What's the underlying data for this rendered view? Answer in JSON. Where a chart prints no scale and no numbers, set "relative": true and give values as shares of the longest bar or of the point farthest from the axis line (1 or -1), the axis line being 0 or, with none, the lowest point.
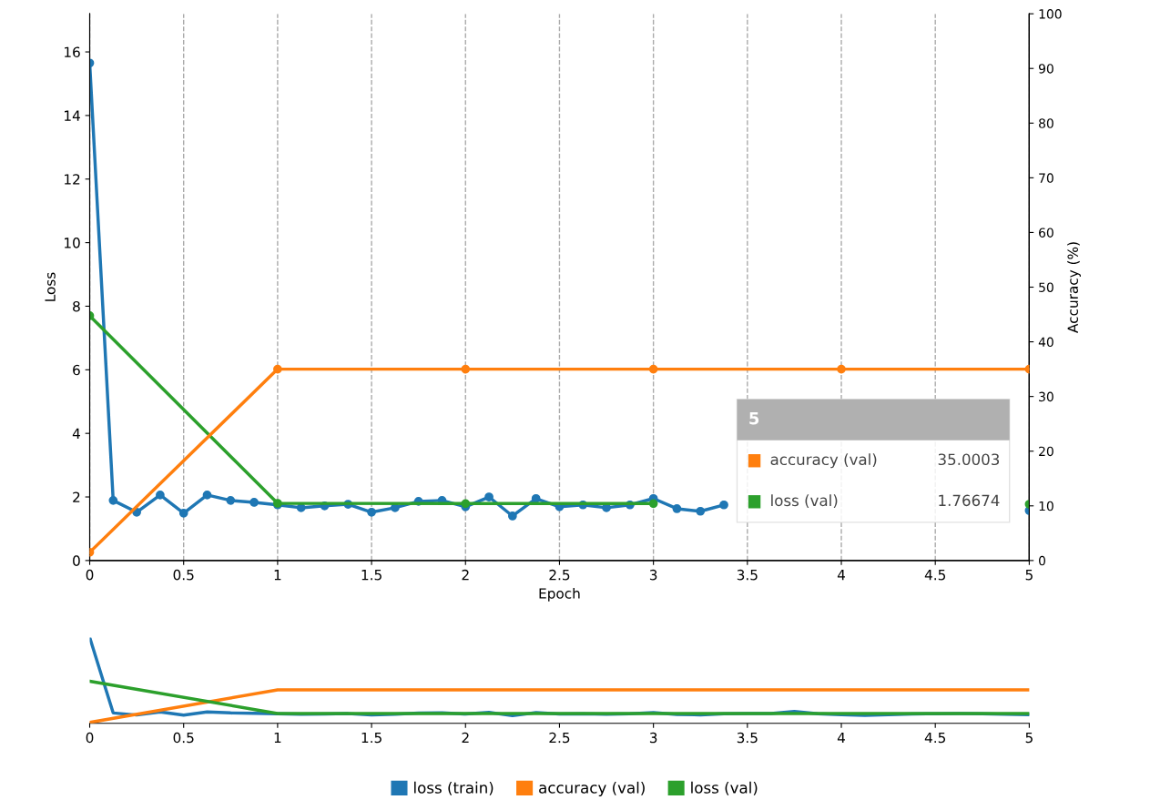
{
  "chart_data": [
    {
      "type": "line",
      "xlabel": "Epoch",
      "ylabel": "Loss",
      "y2label": "Accuracy (%)",
      "xlim": [
        0,
        5
      ],
      "xticks": [
        0,
        0.5,
        1,
        1.5,
        2,
        2.5,
        3,
        3.5,
        4,
        4.5,
        5
      ],
      "ylim": [
        0,
        17.2
      ],
      "yticks": [
        0,
        2,
        4,
        6,
        8,
        10,
        12,
        14,
        16
      ],
      "y2lim": [
        0,
        100
      ],
      "y2ticks": [
        0,
        10,
        20,
        30,
        40,
        50,
        60,
        70,
        80,
        90,
        100
      ],
      "grid": "x",
      "legend": "bottom",
      "marker": "circle",
      "ref_lines": [
        {
          "axis": "x",
          "value": 5,
          "color": "#999999"
        }
      ],
      "annotations": [
        "5",
        "accuracy (val)",
        "35.0003",
        "loss (val)",
        "1.76674"
      ],
      "series": [
        {
          "name": "loss (train)",
          "color": "#1f77b4",
          "x": [
            0,
            0.125,
            0.25,
            0.375,
            0.5,
            0.625,
            0.75,
            0.875,
            1,
            1.125,
            1.25,
            1.375,
            1.5,
            1.625,
            1.75,
            1.875,
            2,
            2.125,
            2.25,
            2.375,
            2.5,
            2.625,
            2.75,
            2.875,
            3,
            3.125,
            3.25,
            3.375,
            3.5,
            3.625,
            3.75,
            3.875,
            4,
            4.125,
            4.25,
            4.375,
            4.5,
            4.625,
            4.75,
            4.875,
            5
          ],
          "values": [
            15.65,
            1.89,
            1.52,
            2.06,
            1.49,
            2.06,
            1.89,
            1.83,
            1.75,
            1.66,
            1.72,
            1.77,
            1.52,
            1.66,
            1.86,
            1.89,
            1.69,
            2.0,
            1.4,
            1.95,
            1.69,
            1.75,
            1.66,
            1.75,
            1.95,
            1.63,
            1.55,
            1.75,
            null,
            null,
            null,
            null,
            null,
            null,
            null,
            null,
            null,
            null,
            null,
            null,
            1.57
          ]
        },
        {
          "name": "accuracy (val)",
          "color": "#ff7f0e",
          "axis": "y2",
          "x": [
            0,
            1,
            2,
            3,
            4,
            5
          ],
          "values": [
            1.5,
            35,
            35,
            35,
            35,
            35
          ]
        },
        {
          "name": "loss (val)",
          "color": "#2ca02c",
          "x": [
            0,
            1,
            2,
            3,
            4,
            5
          ],
          "values": [
            7.7,
            1.8,
            1.79,
            1.79,
            null,
            1.77
          ]
        }
      ]
    },
    {
      "type": "line",
      "relative": true,
      "tick_labels": "x",
      "xlim": [
        0,
        5
      ],
      "xticks": [
        0,
        0.5,
        1,
        1.5,
        2,
        2.5,
        3,
        3.5,
        4,
        4.5,
        5
      ],
      "series": [
        {
          "color": "#1f77b4",
          "x": [
            0,
            0.125,
            0.25,
            0.375,
            0.5,
            0.625,
            0.75,
            0.875,
            1,
            1.125,
            1.25,
            1.375,
            1.5,
            1.625,
            1.75,
            1.875,
            2,
            2.125,
            2.25,
            2.375,
            2.5,
            2.625,
            2.75,
            2.875,
            3,
            3.125,
            3.25,
            3.375,
            3.5,
            3.625,
            3.75,
            3.875,
            4,
            4.125,
            4.25,
            4.375,
            4.5,
            4.625,
            4.75,
            4.875,
            5
          ],
          "values": [
            1,
            0.121,
            0.097,
            0.132,
            0.095,
            0.132,
            0.121,
            0.117,
            0.112,
            0.106,
            0.11,
            0.113,
            0.097,
            0.106,
            0.119,
            0.121,
            0.108,
            0.128,
            0.089,
            0.125,
            0.108,
            0.112,
            0.106,
            0.112,
            0.125,
            0.104,
            0.099,
            0.112,
            0.115,
            0.115,
            0.137,
            0.112,
            0.102,
            0.093,
            0.102,
            0.109,
            0.112,
            0.115,
            0.112,
            0.105,
            0.1
          ]
        },
        {
          "color": "#ff7f0e",
          "x": [
            0,
            1,
            2,
            3,
            4,
            5
          ],
          "values": [
            0.01,
            0.39,
            0.39,
            0.39,
            0.39,
            0.39
          ]
        },
        {
          "color": "#2ca02c",
          "x": [
            0,
            1,
            2,
            3,
            4,
            5
          ],
          "values": [
            0.49,
            0.115,
            0.114,
            0.114,
            0.113,
            0.113
          ]
        }
      ]
    }
  ]
}
